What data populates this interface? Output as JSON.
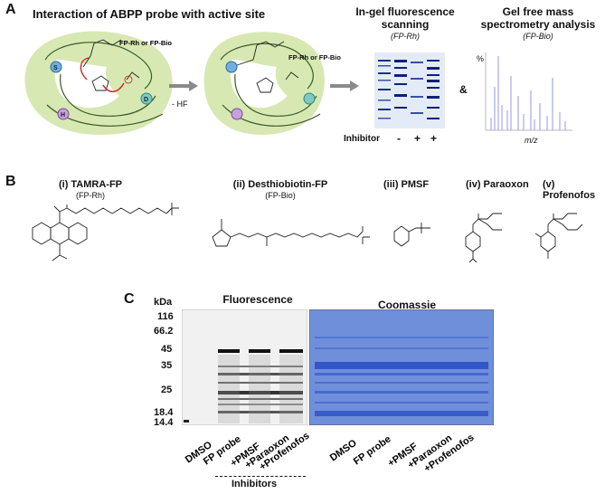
{
  "panelA": {
    "letter": "A",
    "title": "Interaction of ABPP probe with active site",
    "probe_label_left": "FP-Rh or FP-Bio",
    "probe_label_right": "FP-Rh or FP-Bio",
    "residues": {
      "s": "S",
      "h": "H",
      "d": "D"
    },
    "arrow_label": "- HF",
    "ingel_title_line1": "In-gel fluorescence",
    "ingel_title_line2": "scanning",
    "ingel_subtitle": "(FP-Rh)",
    "gelfree_title_line1": "Gel free mass",
    "gelfree_title_line2": "spectrometry analysis",
    "gelfree_subtitle": "(FP-Bio)",
    "inhibitor_label": "Inhibitor",
    "lane_signs": [
      "-",
      "+",
      "+"
    ],
    "ampersand": "&",
    "ms_ylabel": "%",
    "ms_xlabel": "m/z"
  },
  "panelB": {
    "letter": "B",
    "compounds": [
      {
        "name": "(i) TAMRA-FP",
        "sub": "(FP-Rh)"
      },
      {
        "name": "(ii) Desthiobiotin-FP",
        "sub": "(FP-Bio)"
      },
      {
        "name": "(iii) PMSF",
        "sub": ""
      },
      {
        "name": "(iv) Paraoxon",
        "sub": ""
      },
      {
        "name": "(v) Profenofos",
        "sub": ""
      }
    ]
  },
  "panelC": {
    "letter": "C",
    "kda_label": "kDa",
    "markers": [
      "116",
      "66.2",
      "45",
      "35",
      "25",
      "18.4",
      "14.4"
    ],
    "fluorescence_title": "Fluorescence",
    "coomassie_title": "Coomassie",
    "lanes": [
      "DMSO",
      "FP probe",
      "+PMSF",
      "+Paraoxon",
      "+Profenofos"
    ],
    "inhibitors_label": "Inhibitors"
  },
  "colors": {
    "cell_green": "#d7e8b2",
    "gel_blue": "#e3ebf6",
    "band_blue": "#1c2f8a",
    "ms_peak": "#a9a6ea",
    "coomassie": "#6f8fdb",
    "coomassie_band": "#2b4fc4",
    "arrow_grey": "#8a8a8a",
    "red_arrow": "#d11f1f"
  }
}
